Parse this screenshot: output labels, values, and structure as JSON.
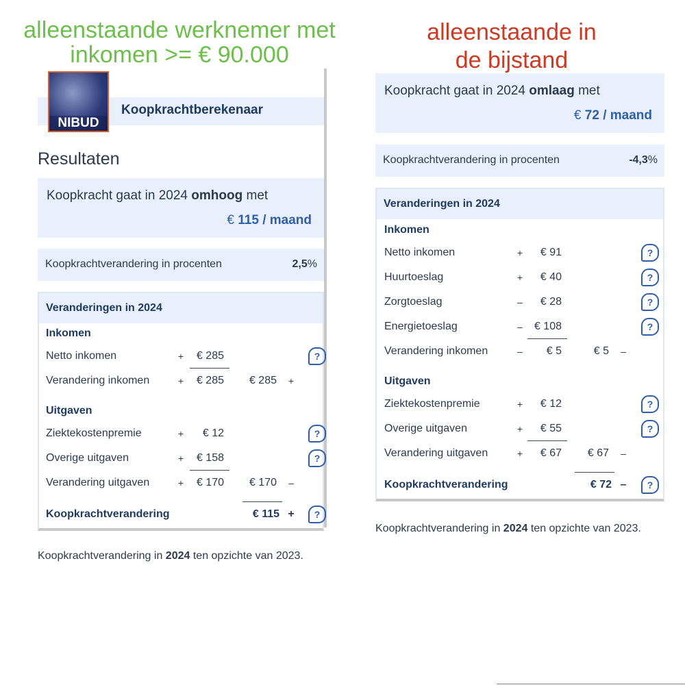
{
  "left": {
    "heading": [
      "alleenstaande werknemer met",
      "inkomen >= € 90.000"
    ],
    "logo": "NIBUD",
    "app_title": "Koopkrachtberekenaar",
    "results_title": "Resultaten",
    "summary": {
      "lead": "Koopkracht gaat in 2024",
      "direction": "omhoog",
      "tail": "met",
      "currency": "€",
      "amount": "115 / maand"
    },
    "percent": {
      "label": "Koopkrachtverandering in procenten",
      "value": "2,5",
      "unit": "%"
    },
    "table": {
      "title": "Veranderingen in 2024",
      "help_label": "?",
      "sections": [
        {
          "title": "Inkomen",
          "rows": [
            {
              "label": "Netto inkomen",
              "sign": "+",
              "amount": "€ 285",
              "underlined": true,
              "help": true
            },
            {
              "label": "Verandering inkomen",
              "sign": "+",
              "amount": "€ 285",
              "total": "€ 285",
              "total_sign": "+"
            }
          ]
        },
        {
          "title": "Uitgaven",
          "rows": [
            {
              "label": "Ziektekostenpremie",
              "sign": "+",
              "amount": "€ 12",
              "help": true
            },
            {
              "label": "Overige uitgaven",
              "sign": "+",
              "amount": "€ 158",
              "underlined": true,
              "help": true
            },
            {
              "label": "Verandering uitgaven",
              "sign": "+",
              "amount": "€ 170",
              "total": "€ 170",
              "total_sign": "–",
              "total_underlined": true
            }
          ]
        }
      ],
      "result": {
        "label": "Koopkrachtverandering",
        "total": "€ 115",
        "total_sign": "+",
        "help": true
      }
    },
    "footnote": [
      "Koopkrachtverandering in",
      "2024",
      "ten opzichte van 2023."
    ]
  },
  "right": {
    "heading": [
      "alleenstaande in",
      "de bijstand"
    ],
    "summary": {
      "lead": "Koopkracht gaat in 2024",
      "direction": "omlaag",
      "tail": "met",
      "currency": "€",
      "amount": "72 / maand"
    },
    "percent": {
      "label": "Koopkrachtverandering in procenten",
      "value": "-4,3",
      "unit": "%"
    },
    "table": {
      "title": "Veranderingen in 2024",
      "help_label": "?",
      "sections": [
        {
          "title": "Inkomen",
          "rows": [
            {
              "label": "Netto inkomen",
              "sign": "+",
              "amount": "€ 91",
              "help": true
            },
            {
              "label": "Huurtoeslag",
              "sign": "+",
              "amount": "€ 40",
              "help": true
            },
            {
              "label": "Zorgtoeslag",
              "sign": "–",
              "amount": "€ 28",
              "help": true
            },
            {
              "label": "Energietoeslag",
              "sign": "–",
              "amount": "€ 108",
              "underlined": true,
              "help": true
            },
            {
              "label": "Verandering inkomen",
              "sign": "–",
              "amount": "€ 5",
              "total": "€ 5",
              "total_sign": "–"
            }
          ]
        },
        {
          "title": "Uitgaven",
          "rows": [
            {
              "label": "Ziektekostenpremie",
              "sign": "+",
              "amount": "€ 12",
              "help": true
            },
            {
              "label": "Overige uitgaven",
              "sign": "+",
              "amount": "€ 55",
              "underlined": true,
              "help": true
            },
            {
              "label": "Verandering uitgaven",
              "sign": "+",
              "amount": "€ 67",
              "total": "€ 67",
              "total_sign": "–",
              "total_underlined": true
            }
          ]
        }
      ],
      "result": {
        "label": "Koopkrachtverandering",
        "total": "€ 72",
        "total_sign": "–",
        "help": true
      }
    },
    "footnote": [
      "Koopkrachtverandering in",
      "2024",
      "ten opzichte van 2023."
    ]
  }
}
